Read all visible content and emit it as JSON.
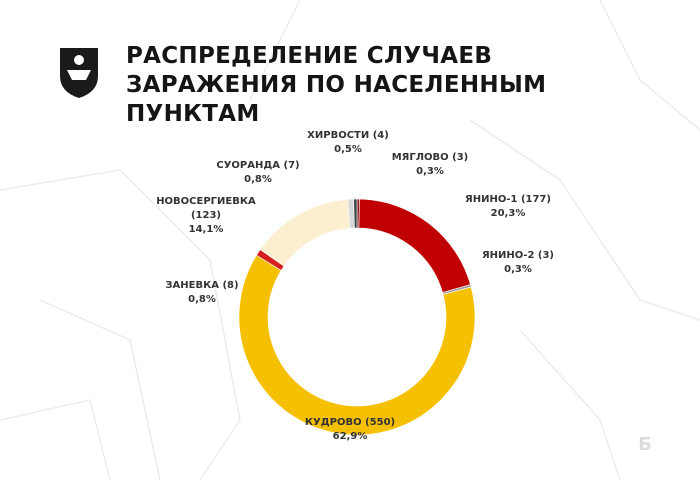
{
  "chart_data": {
    "type": "donut",
    "title": "РАСПРЕДЕЛЕНИЕ СЛУЧАЕВ ЗАРАЖЕНИЯ ПО НАСЕЛЕННЫМ ПУНКТАМ",
    "categories": [
      "МЯГЛОВО",
      "ЯНИНО-1",
      "ЯНИНО-2",
      "КУДРОВО",
      "ЗАНЕВКА",
      "НОВОСЕРГИЕВКА",
      "СУОРАНДА",
      "ХИРВОСТИ"
    ],
    "values": [
      3,
      177,
      3,
      550,
      8,
      123,
      7,
      4
    ],
    "value_labels": [
      "(3)",
      "(177)",
      "(3)",
      "(550)",
      "(8)",
      "(123)",
      "(7)",
      "(4)"
    ],
    "percent_labels": [
      "0,3%",
      "20,3%",
      "0,3%",
      "62,9%",
      "0,8%",
      "14,1%",
      "0,8%",
      "0,5%"
    ],
    "colors": [
      "#8b1a1a",
      "#c00000",
      "#9a9a9a",
      "#f5c000",
      "#d42020",
      "#fcefcf",
      "#d8d8d8",
      "#3d4a48"
    ]
  }
}
